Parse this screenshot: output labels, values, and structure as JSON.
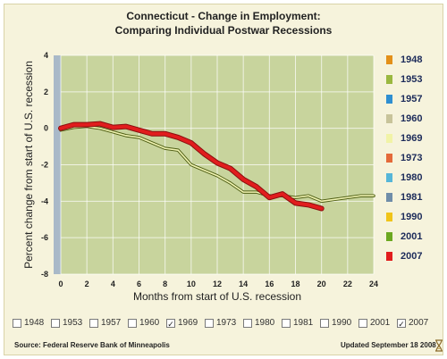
{
  "chart_data": {
    "type": "line",
    "title": "Connecticut - Change in Employment:",
    "subtitle": "Comparing Individual Postwar Recessions",
    "xlabel": "Months from start of U.S. recession",
    "ylabel": "Percent change from start of U.S. recession",
    "xlim": [
      0,
      24
    ],
    "ylim": [
      -8,
      4
    ],
    "x_ticks": [
      "0",
      "2",
      "4",
      "6",
      "8",
      "10",
      "12",
      "14",
      "16",
      "18",
      "20",
      "22",
      "24"
    ],
    "y_ticks": [
      "4",
      "2",
      "0",
      "-2",
      "-4",
      "-6",
      "-8"
    ],
    "grid": true,
    "legend_position": "right",
    "series": [
      {
        "name": "1969",
        "color": "#f2f5b4",
        "outline": "#4d5d12",
        "x": [
          0,
          1,
          2,
          3,
          4,
          5,
          6,
          7,
          8,
          9,
          10,
          11,
          12,
          13,
          14,
          15,
          16,
          17,
          18,
          19,
          20,
          21,
          22,
          23,
          24
        ],
        "y": [
          -0.1,
          0.05,
          0.1,
          0.0,
          -0.2,
          -0.4,
          -0.5,
          -0.8,
          -1.1,
          -1.2,
          -2.0,
          -2.3,
          -2.6,
          -3.0,
          -3.5,
          -3.5,
          -3.7,
          -3.7,
          -3.8,
          -3.7,
          -4.0,
          -3.9,
          -3.8,
          -3.7,
          -3.7
        ]
      },
      {
        "name": "2007",
        "color": "#e11d1d",
        "outline": "#8a0f0f",
        "x": [
          0,
          1,
          2,
          3,
          4,
          5,
          6,
          7,
          8,
          9,
          10,
          11,
          12,
          13,
          14,
          15,
          16,
          17,
          18,
          19,
          20
        ],
        "y": [
          0.0,
          0.2,
          0.2,
          0.25,
          0.05,
          0.1,
          -0.1,
          -0.3,
          -0.3,
          -0.5,
          -0.8,
          -1.4,
          -1.9,
          -2.2,
          -2.8,
          -3.2,
          -3.8,
          -3.6,
          -4.1,
          -4.2,
          -4.4
        ]
      }
    ]
  },
  "legend": [
    {
      "label": "1948",
      "color": "#e39019"
    },
    {
      "label": "1953",
      "color": "#9ab840"
    },
    {
      "label": "1957",
      "color": "#2f8fd1"
    },
    {
      "label": "1960",
      "color": "#c8c49a"
    },
    {
      "label": "1969",
      "color": "#f1f3a6"
    },
    {
      "label": "1973",
      "color": "#e46a3a"
    },
    {
      "label": "1980",
      "color": "#56b6d8"
    },
    {
      "label": "1981",
      "color": "#6f8da9"
    },
    {
      "label": "1990",
      "color": "#f0c419"
    },
    {
      "label": "2001",
      "color": "#6ca820"
    },
    {
      "label": "2007",
      "color": "#e11d1d"
    }
  ],
  "toggles": [
    {
      "label": "1948",
      "checked": false
    },
    {
      "label": "1953",
      "checked": false
    },
    {
      "label": "1957",
      "checked": false
    },
    {
      "label": "1960",
      "checked": false
    },
    {
      "label": "1969",
      "checked": true
    },
    {
      "label": "1973",
      "checked": false
    },
    {
      "label": "1980",
      "checked": false
    },
    {
      "label": "1981",
      "checked": false
    },
    {
      "label": "1990",
      "checked": false
    },
    {
      "label": "2001",
      "checked": false
    },
    {
      "label": "2007",
      "checked": true
    }
  ],
  "footer": {
    "source": "Source: Federal Reserve Bank of Minneapolis",
    "updated": "Updated September 18 2008"
  },
  "colors": {
    "plot_bg": "#c8d49d",
    "axis_strip": "#a9b9c8",
    "grid": "#ffffff"
  }
}
